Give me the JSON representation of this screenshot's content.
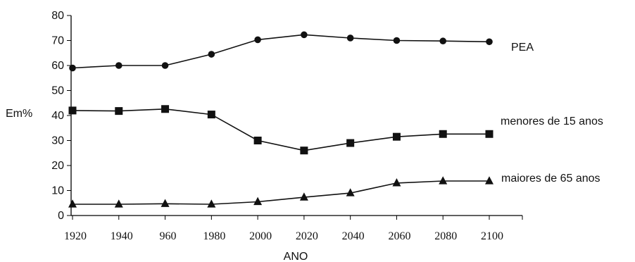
{
  "chart_data": {
    "type": "line",
    "title": "",
    "xlabel": "ANO",
    "ylabel": "Em%",
    "x": [
      "1920",
      "1940",
      "960",
      "1980",
      "2000",
      "2020",
      "2040",
      "2060",
      "2080",
      "2100"
    ],
    "ylim": [
      0,
      80
    ],
    "yticks": [
      "0",
      "10",
      "20",
      "30",
      "40",
      "50",
      "60",
      "70",
      "80"
    ],
    "grid": false,
    "series": [
      {
        "name": "PEA",
        "marker": "circle",
        "color": "#111111",
        "values": [
          59,
          60,
          60,
          64.5,
          70.3,
          72.3,
          71,
          70,
          69.8,
          69.5
        ]
      },
      {
        "name": "menores de 15 anos",
        "marker": "square",
        "color": "#111111",
        "values": [
          42,
          41.8,
          42.6,
          40.4,
          30,
          26,
          29,
          31.5,
          32.6,
          32.6
        ]
      },
      {
        "name": "maiores de 65 anos",
        "marker": "triangle",
        "color": "#111111",
        "values": [
          4.5,
          4.5,
          4.7,
          4.5,
          5.5,
          7.3,
          9,
          13,
          13.8,
          13.8
        ]
      }
    ]
  }
}
